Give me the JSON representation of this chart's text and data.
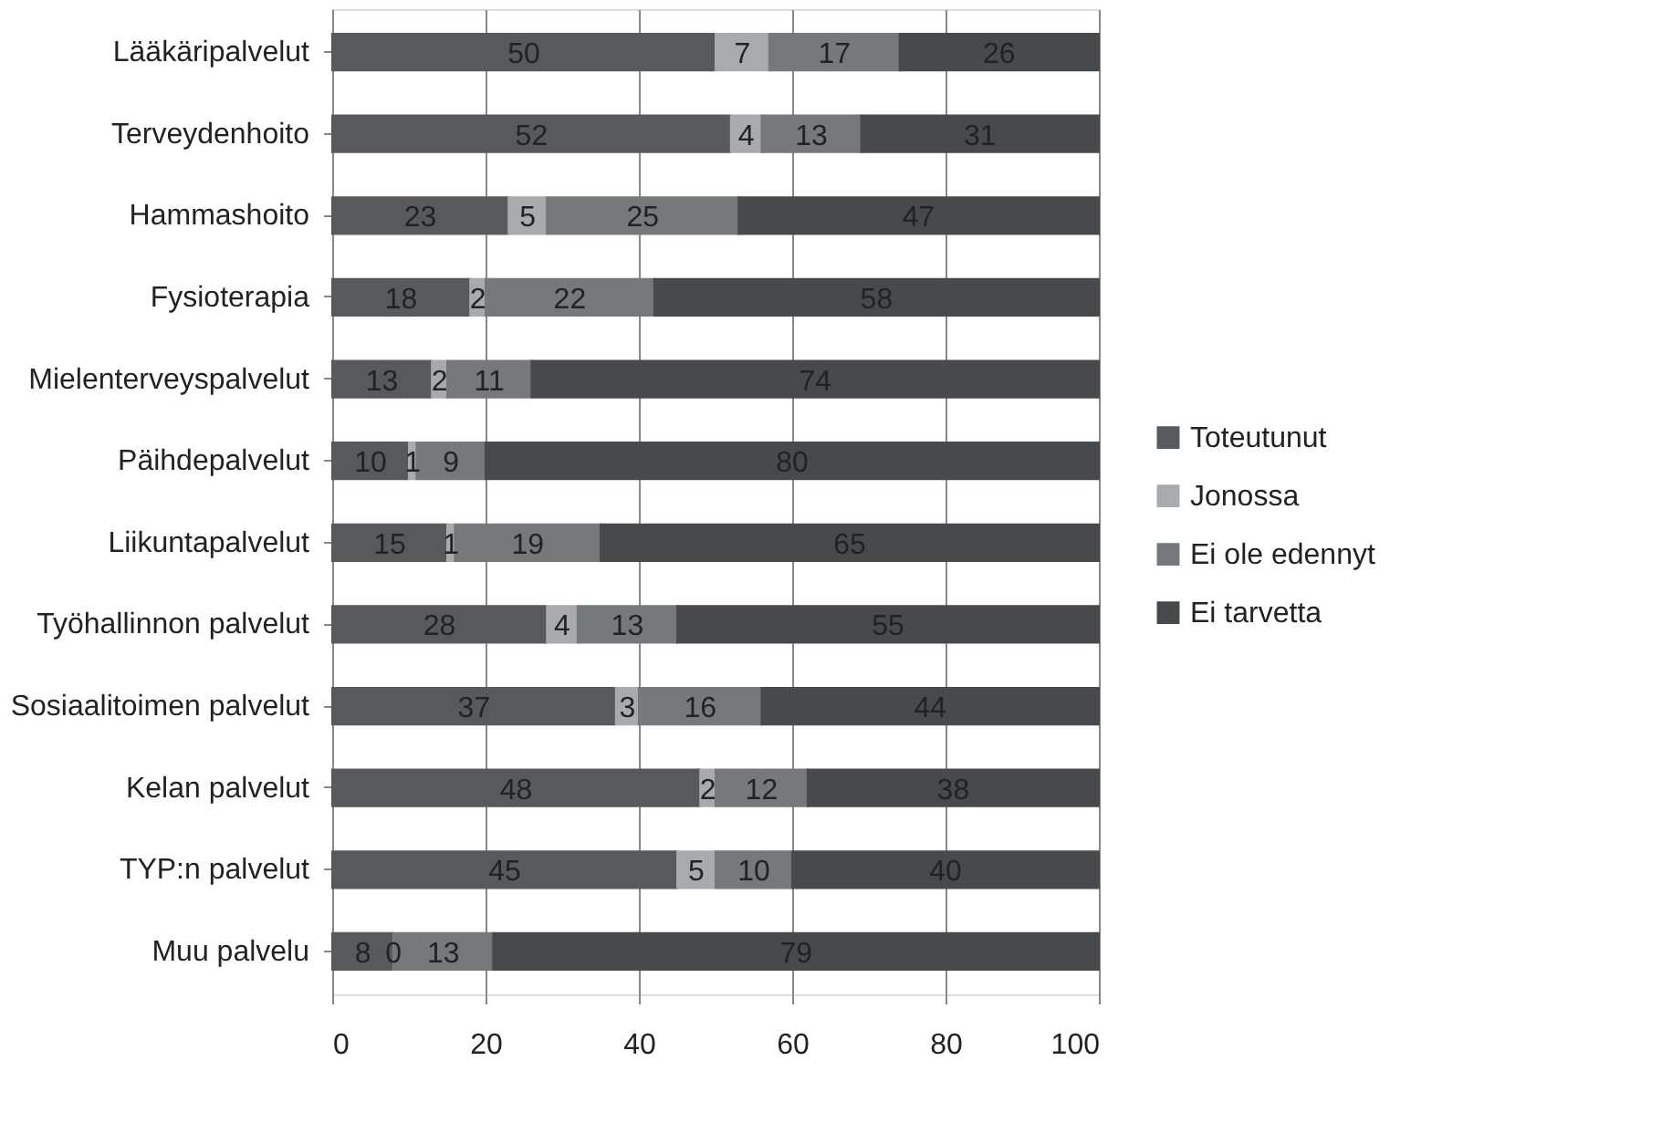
{
  "chart_data": {
    "type": "bar",
    "orientation": "horizontal",
    "stacked": true,
    "data_labels": true,
    "grid": "x",
    "legend": "right",
    "categories": [
      "Lääkäripalvelut",
      "Terveydenhoito",
      "Hammashoito",
      "Fysioterapia",
      "Mielenterveyspalvelut",
      "Päihdepalvelut",
      "Liikuntapalvelut",
      "Työhallinnon palvelut",
      "Sosiaalitoimen palvelut",
      "Kelan palvelut",
      "TYP:n palvelut",
      "Muu palvelu"
    ],
    "series": [
      {
        "name": "Toteutunut",
        "color": "#575a5c",
        "values": [
          50,
          52,
          23,
          18,
          13,
          10,
          15,
          28,
          37,
          48,
          45,
          8
        ]
      },
      {
        "name": "Jonossa",
        "color": "#a8abad",
        "values": [
          7,
          4,
          5,
          2,
          2,
          1,
          1,
          4,
          3,
          2,
          5,
          0
        ]
      },
      {
        "name": "Ei ole edennyt",
        "color": "#76797b",
        "values": [
          17,
          13,
          25,
          22,
          11,
          9,
          19,
          13,
          16,
          12,
          10,
          13
        ]
      },
      {
        "name": "Ei tarvetta",
        "color": "#474a4c",
        "values": [
          26,
          31,
          47,
          58,
          74,
          80,
          65,
          55,
          44,
          38,
          40,
          79
        ]
      }
    ],
    "xlim": [
      0,
      100
    ],
    "xticks": [
      0,
      20,
      40,
      60,
      80,
      100
    ]
  }
}
